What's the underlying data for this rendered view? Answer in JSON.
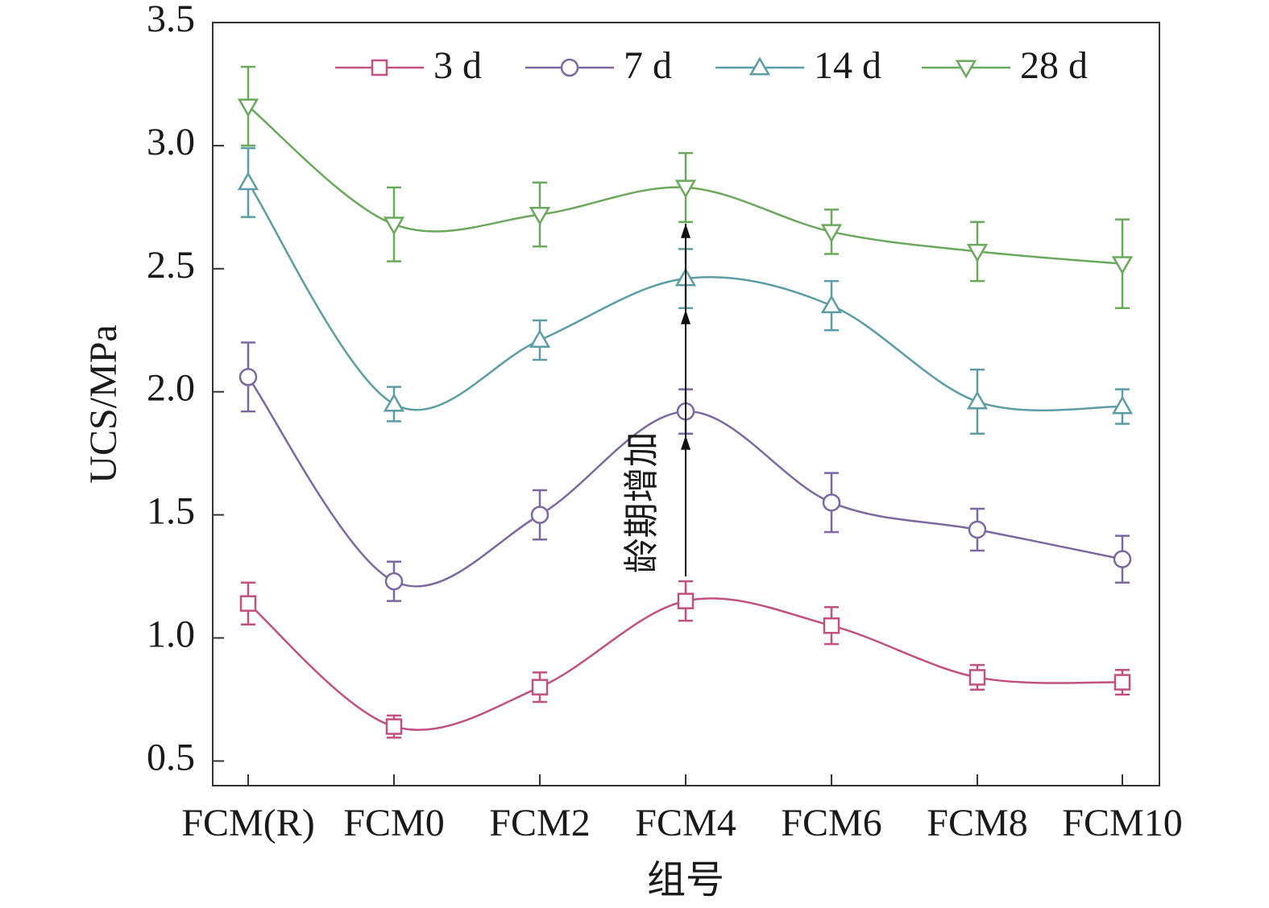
{
  "chart_data": {
    "type": "line",
    "xlabel": "组号",
    "ylabel": "UCS/MPa",
    "categories": [
      "FCM(R)",
      "FCM0",
      "FCM2",
      "FCM4",
      "FCM6",
      "FCM8",
      "FCM10"
    ],
    "ylim": [
      0.4,
      3.5
    ],
    "yticks": [
      "0.5",
      "1.0",
      "1.5",
      "2.0",
      "2.5",
      "3.0",
      "3.5"
    ],
    "grid": false,
    "legend_position": "top",
    "annotation": "龄期增加",
    "series": [
      {
        "name": "3 d",
        "marker": "square",
        "color": "#c05080",
        "values": [
          1.14,
          0.64,
          0.8,
          1.15,
          1.05,
          0.84,
          0.82
        ],
        "errors": [
          0.085,
          0.045,
          0.06,
          0.08,
          0.075,
          0.05,
          0.05
        ]
      },
      {
        "name": "7 d",
        "marker": "circle",
        "color": "#7b68a0",
        "values": [
          2.06,
          1.23,
          1.5,
          1.92,
          1.55,
          1.44,
          1.32
        ],
        "errors": [
          0.14,
          0.08,
          0.1,
          0.09,
          0.12,
          0.085,
          0.095
        ]
      },
      {
        "name": "14 d",
        "marker": "triangle-up",
        "color": "#5c9ca4",
        "values": [
          2.85,
          1.95,
          2.21,
          2.46,
          2.35,
          1.96,
          1.94
        ],
        "errors": [
          0.14,
          0.07,
          0.08,
          0.12,
          0.1,
          0.13,
          0.07
        ]
      },
      {
        "name": "28 d",
        "marker": "triangle-down",
        "color": "#6aa85c",
        "values": [
          3.16,
          2.68,
          2.72,
          2.83,
          2.65,
          2.57,
          2.52
        ],
        "errors": [
          0.16,
          0.15,
          0.13,
          0.14,
          0.09,
          0.12,
          0.18
        ]
      }
    ]
  }
}
